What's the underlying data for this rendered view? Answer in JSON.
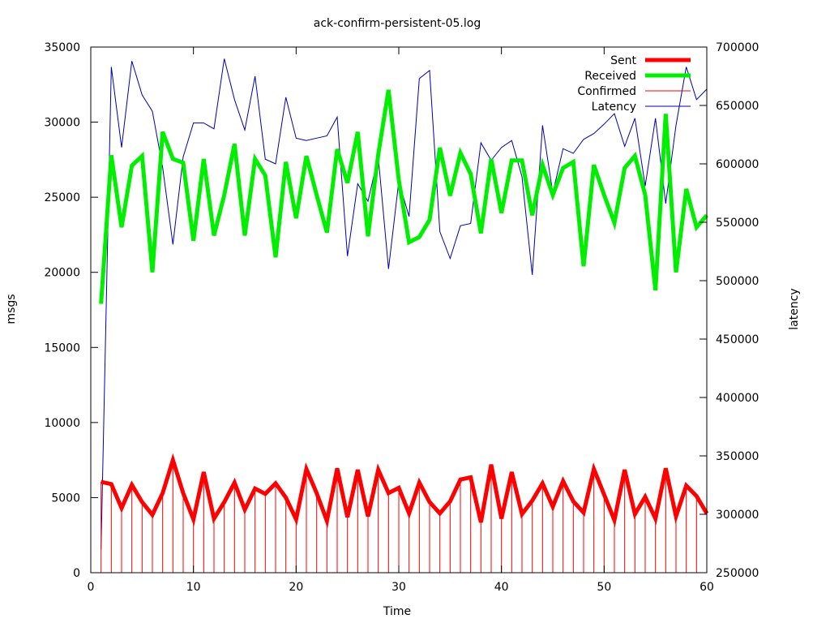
{
  "chart_data": {
    "type": "line",
    "title": "ack-confirm-persistent-05.log",
    "xlabel": "Time",
    "ylabel": "msgs",
    "y2label": "latency",
    "xlim": [
      0,
      60
    ],
    "ylim": [
      0,
      35000
    ],
    "y2lim": [
      250000,
      700000
    ],
    "xticks": [
      0,
      10,
      20,
      30,
      40,
      50,
      60
    ],
    "yticks": [
      0,
      5000,
      10000,
      15000,
      20000,
      25000,
      30000,
      35000
    ],
    "y2ticks": [
      250000,
      300000,
      350000,
      400000,
      450000,
      500000,
      550000,
      600000,
      650000,
      700000
    ],
    "grid": false,
    "legend_position": "top-right",
    "x": [
      1,
      2,
      3,
      4,
      5,
      6,
      7,
      8,
      9,
      10,
      11,
      12,
      13,
      14,
      15,
      16,
      17,
      18,
      19,
      20,
      21,
      22,
      23,
      24,
      25,
      26,
      27,
      28,
      29,
      30,
      31,
      32,
      33,
      34,
      35,
      36,
      37,
      38,
      39,
      40,
      41,
      42,
      43,
      44,
      45,
      46,
      47,
      48,
      49,
      50,
      51,
      52,
      53,
      54,
      55,
      56,
      57,
      58,
      59,
      60
    ],
    "series": [
      {
        "name": "Sent",
        "style": "thick-line",
        "color": "#ff0000",
        "axis": "y",
        "values": [
          6050,
          5900,
          4300,
          5850,
          4700,
          3850,
          5300,
          7500,
          5300,
          3550,
          6700,
          3600,
          4700,
          6000,
          4200,
          5600,
          5250,
          5950,
          5000,
          3550,
          6900,
          5300,
          3450,
          6950,
          3700,
          6850,
          3750,
          6850,
          5300,
          5650,
          3950,
          6000,
          4700,
          3950,
          4750,
          6200,
          6350,
          3350,
          7200,
          3600,
          6700,
          3900,
          4800,
          5950,
          4400,
          6100,
          4750,
          4000,
          6900,
          5200,
          3500,
          6850,
          3900,
          5050,
          3600,
          6950,
          3750,
          5800,
          5100,
          3950
        ]
      },
      {
        "name": "Received",
        "style": "thick-line",
        "color": "#00ee00",
        "axis": "y",
        "values": [
          17900,
          27800,
          23000,
          27100,
          27750,
          20000,
          29350,
          27550,
          27300,
          22100,
          27550,
          22450,
          25150,
          28550,
          22450,
          27550,
          26450,
          21000,
          27350,
          23600,
          27750,
          25150,
          22650,
          28200,
          25950,
          29350,
          22400,
          27850,
          32150,
          26150,
          22000,
          22350,
          23500,
          28300,
          25100,
          27950,
          26550,
          22600,
          27550,
          23950,
          27450,
          27450,
          23800,
          27150,
          25150,
          26950,
          27350,
          20400,
          27150,
          25150,
          23300,
          26950,
          27750,
          25150,
          18800,
          30550,
          20000,
          25550,
          23000,
          23800
        ]
      },
      {
        "name": "Confirmed",
        "style": "impulses",
        "color": "#ff0000",
        "axis": "y",
        "values": [
          6050,
          5900,
          4300,
          5850,
          4700,
          3850,
          5300,
          7500,
          5300,
          3550,
          6700,
          3600,
          4700,
          6000,
          4200,
          5600,
          5250,
          5950,
          5000,
          3550,
          6900,
          5300,
          3450,
          6950,
          3700,
          6850,
          3750,
          6850,
          5300,
          5650,
          3950,
          6000,
          4700,
          3950,
          4750,
          6200,
          6350,
          3350,
          7200,
          3600,
          6700,
          3900,
          4800,
          5950,
          4400,
          6100,
          4750,
          4000,
          6900,
          5200,
          3500,
          6850,
          3900,
          5050,
          3600,
          6950,
          3750,
          5800,
          5100,
          3950
        ]
      },
      {
        "name": "Latency",
        "style": "thin-line",
        "color": "#0000aa",
        "axis": "y2",
        "values": [
          270000,
          683000,
          614000,
          688000,
          659000,
          645000,
          597000,
          531000,
          606000,
          635000,
          635000,
          630000,
          690000,
          655000,
          629000,
          675000,
          604000,
          600000,
          657000,
          622000,
          620000,
          622000,
          624000,
          640000,
          521000,
          583000,
          568000,
          606000,
          510000,
          585000,
          555000,
          673000,
          680000,
          542000,
          519000,
          547000,
          549000,
          618000,
          603000,
          614000,
          620000,
          589000,
          505000,
          633000,
          575000,
          613000,
          609000,
          621000,
          626000,
          634000,
          643000,
          615000,
          639000,
          581000,
          639000,
          566000,
          633000,
          683000,
          655000,
          664000
        ]
      }
    ]
  }
}
